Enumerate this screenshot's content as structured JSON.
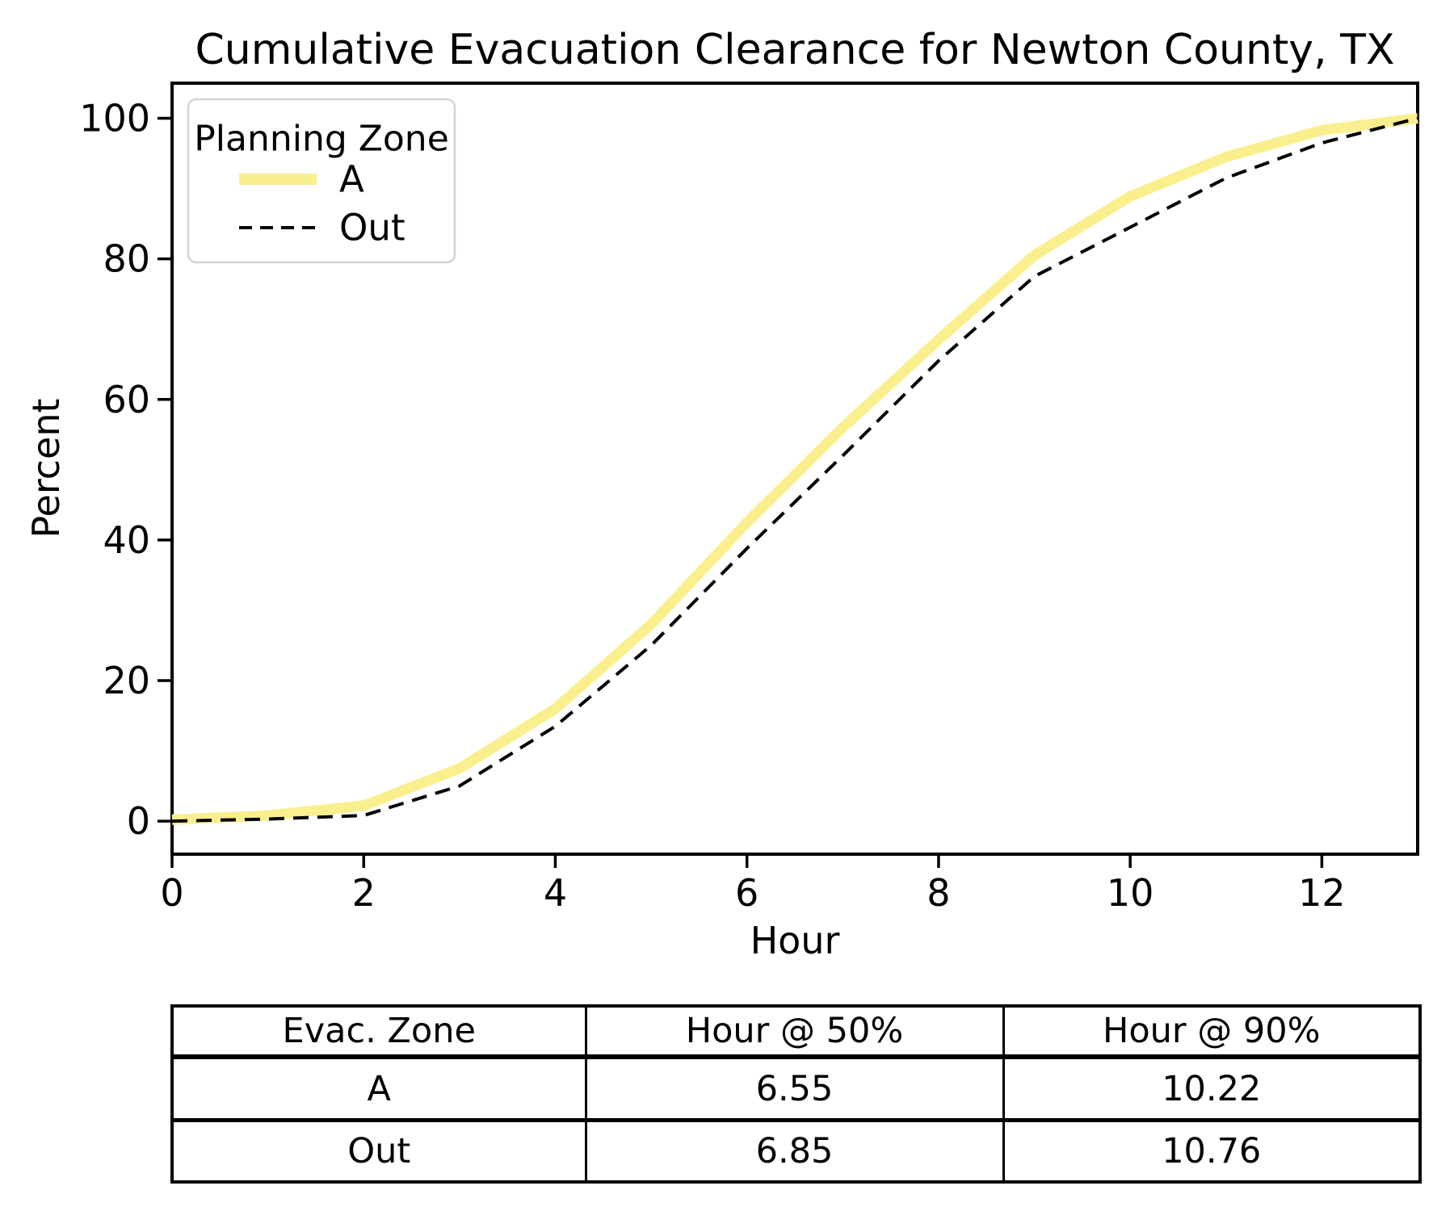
{
  "figure": {
    "background": "#ffffff"
  },
  "chart_data": {
    "type": "line",
    "title": "Cumulative Evacuation Clearance for Newton County, TX",
    "xlabel": "Hour",
    "ylabel": "Percent",
    "xlim": [
      0,
      13
    ],
    "ylim": [
      -4.7,
      105
    ],
    "x_ticks": [
      0,
      2,
      4,
      6,
      8,
      10,
      12
    ],
    "y_ticks": [
      0,
      20,
      40,
      60,
      80,
      100
    ],
    "grid": false,
    "legend": {
      "title": "Planning Zone",
      "position": "upper-left"
    },
    "x": [
      0,
      1,
      2,
      3,
      4,
      5,
      6,
      7,
      8,
      9,
      10,
      11,
      12,
      13
    ],
    "series": [
      {
        "name": "A",
        "line_style": "solid",
        "color": "#FAEF8D",
        "line_width": 13,
        "values": [
          0.2,
          0.8,
          2.2,
          7.5,
          16,
          28,
          42.5,
          56,
          68.5,
          80.5,
          88.9,
          94.5,
          98.3,
          100
        ]
      },
      {
        "name": "Out",
        "line_style": "dashed",
        "color": "#000000",
        "line_width": 4,
        "values": [
          0,
          0.3,
          0.8,
          5,
          13.5,
          25,
          38.8,
          52,
          65.5,
          77.5,
          84.5,
          91.5,
          96.5,
          100
        ]
      }
    ]
  },
  "summary_table": {
    "headers": [
      "Evac. Zone",
      "Hour @ 50%",
      "Hour @ 90%"
    ],
    "rows": [
      {
        "zone": "A",
        "hour_50": "6.55",
        "hour_90": "10.22"
      },
      {
        "zone": "Out",
        "hour_50": "6.85",
        "hour_90": "10.76"
      }
    ]
  }
}
